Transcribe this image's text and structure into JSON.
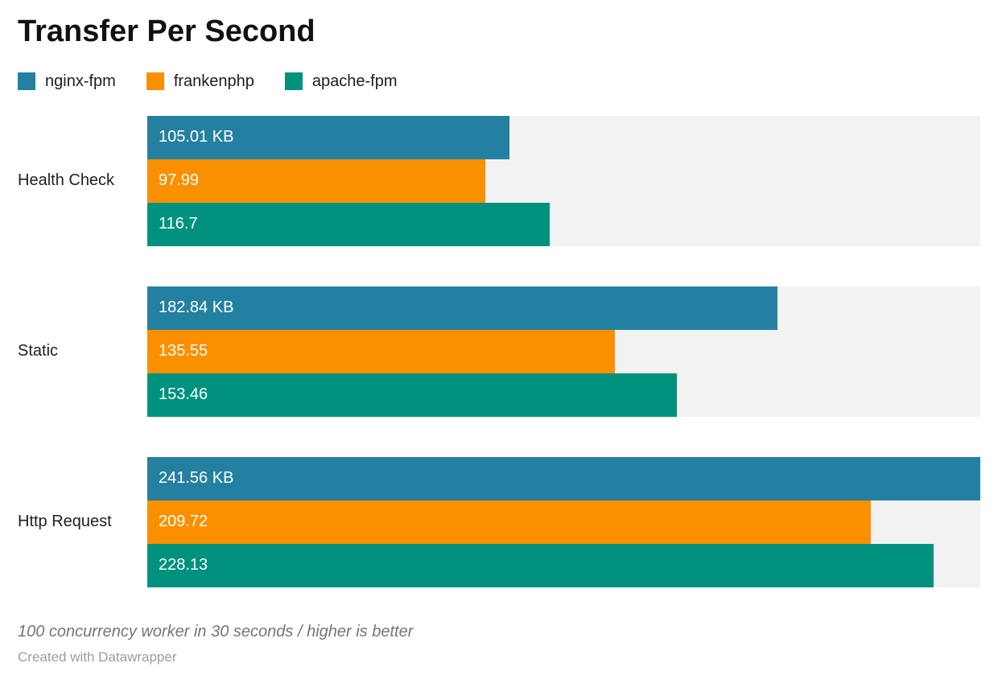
{
  "chart_data": {
    "type": "bar",
    "orientation": "horizontal",
    "title": "Transfer Per Second",
    "categories": [
      "Health Check",
      "Static",
      "Http Request"
    ],
    "series": [
      {
        "name": "nginx-fpm",
        "color": "#2480a1",
        "values": [
          105.01,
          182.84,
          241.56
        ],
        "labels": [
          "105.01 KB",
          "182.84 KB",
          "241.56 KB"
        ]
      },
      {
        "name": "frankenphp",
        "color": "#fa9000",
        "values": [
          97.99,
          135.55,
          209.72
        ],
        "labels": [
          "97.99",
          "135.55",
          "209.72"
        ]
      },
      {
        "name": "apache-fpm",
        "color": "#00927e",
        "values": [
          116.7,
          153.46,
          228.13
        ],
        "labels": [
          "116.7",
          "153.46",
          "228.13"
        ]
      }
    ],
    "xlim": [
      0,
      241.56
    ],
    "grid": false,
    "legend_position": "top",
    "track_color": "#f2f2f2",
    "notes": "100 concurrency worker in 30 seconds / higher is better",
    "attribution": "Created with Datawrapper"
  }
}
